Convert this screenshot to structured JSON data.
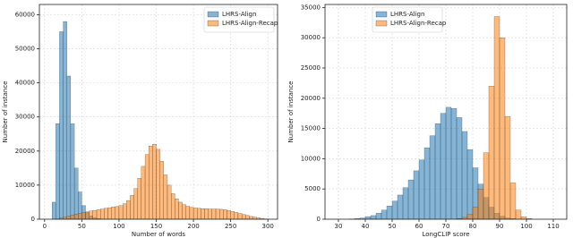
{
  "chart_data": [
    {
      "type": "histogram",
      "x_label": "Number of words",
      "y_label": "Number of instance",
      "bins": [
        10,
        15,
        20,
        25,
        30,
        35,
        40,
        45,
        50,
        55,
        60,
        65,
        70,
        75,
        80,
        85,
        90,
        95,
        100,
        105,
        110,
        115,
        120,
        125,
        130,
        135,
        140,
        145,
        150,
        155,
        160,
        165,
        170,
        175,
        180,
        185,
        190,
        195,
        200,
        205,
        210,
        215,
        220,
        225,
        230,
        235,
        240,
        245,
        250,
        255,
        260,
        265,
        270,
        275,
        280,
        285,
        290,
        295,
        300
      ],
      "series": [
        {
          "name": "LHRS-Align",
          "color": "#1f77b4",
          "values": [
            5000,
            28000,
            55000,
            58000,
            42000,
            28000,
            15000,
            8000,
            4000,
            2000,
            1000,
            400,
            200,
            0,
            0,
            0,
            0,
            0,
            0,
            0,
            0,
            0,
            0,
            0,
            0,
            0,
            0,
            0,
            0,
            0,
            0,
            0,
            0,
            0,
            0,
            0,
            0,
            0,
            0,
            0,
            0,
            0,
            0,
            0,
            0,
            0,
            0,
            0,
            0,
            0,
            0,
            0,
            0,
            0,
            0,
            0,
            0,
            0
          ]
        },
        {
          "name": "LHRS-Align-Recap",
          "color": "#ff7f0e",
          "values": [
            0,
            100,
            300,
            600,
            900,
            1200,
            1500,
            1800,
            2000,
            2200,
            2400,
            2600,
            2800,
            3000,
            3200,
            3400,
            3600,
            3700,
            4000,
            4500,
            5500,
            7000,
            9000,
            12000,
            15500,
            19000,
            21500,
            22000,
            20500,
            17000,
            13000,
            10000,
            7500,
            6000,
            5000,
            4300,
            3800,
            3500,
            3300,
            3200,
            3100,
            3100,
            3000,
            3000,
            3000,
            2900,
            2800,
            2600,
            2300,
            2000,
            1700,
            1400,
            1100,
            800,
            600,
            400,
            250,
            100
          ]
        }
      ],
      "xlim": [
        -7,
        313
      ],
      "xticks": [
        0,
        50,
        100,
        150,
        200,
        250,
        300
      ],
      "ylim": [
        0,
        63000
      ],
      "yticks": [
        0,
        10000,
        20000,
        30000,
        40000,
        50000,
        60000
      ],
      "grid": true,
      "legend": "upper right"
    },
    {
      "type": "histogram",
      "x_label": "LongCLIP score",
      "y_label": "Number of instance",
      "bins": [
        30,
        32,
        34,
        36,
        38,
        40,
        42,
        44,
        46,
        48,
        50,
        52,
        54,
        56,
        58,
        60,
        62,
        64,
        66,
        68,
        70,
        72,
        74,
        76,
        78,
        80,
        82,
        84,
        86,
        88,
        90,
        92,
        94,
        96,
        98,
        100,
        102,
        104,
        106,
        108,
        110
      ],
      "series": [
        {
          "name": "LHRS-Align",
          "color": "#1f77b4",
          "values": [
            0,
            0,
            50,
            100,
            200,
            400,
            600,
            1000,
            1500,
            2200,
            3000,
            4000,
            5200,
            6500,
            8000,
            9800,
            11800,
            13800,
            15800,
            17500,
            18500,
            18300,
            16800,
            14500,
            11500,
            8500,
            5800,
            3600,
            2000,
            1000,
            500,
            200,
            100,
            0,
            0,
            0,
            0,
            0,
            0,
            0
          ]
        },
        {
          "name": "LHRS-Align-Recap",
          "color": "#ff7f0e",
          "values": [
            0,
            0,
            0,
            0,
            0,
            0,
            0,
            0,
            0,
            0,
            0,
            0,
            0,
            0,
            0,
            0,
            0,
            0,
            0,
            0,
            0,
            0,
            100,
            300,
            800,
            2000,
            5000,
            11000,
            22000,
            33500,
            30000,
            17000,
            6000,
            1500,
            400,
            100,
            0,
            0,
            0,
            0
          ]
        }
      ],
      "xlim": [
        25,
        115
      ],
      "xticks": [
        30,
        40,
        50,
        60,
        70,
        80,
        90,
        100,
        110
      ],
      "ylim": [
        0,
        35500
      ],
      "yticks": [
        0,
        5000,
        10000,
        15000,
        20000,
        25000,
        30000,
        35000
      ],
      "grid": true,
      "legend": "upper left"
    }
  ]
}
